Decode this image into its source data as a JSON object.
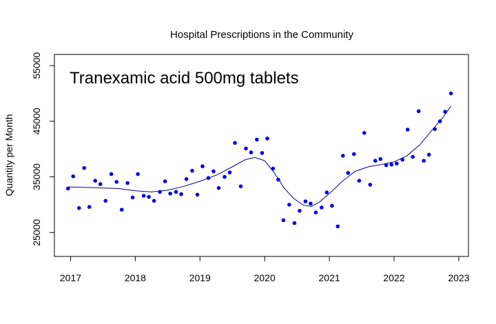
{
  "chart_data": {
    "type": "scatter",
    "title": "Hospital Prescriptions in the Community",
    "annotation": "Tranexamic acid 500mg tablets",
    "xlabel": "",
    "ylabel": "Quantity per Month",
    "xlim": [
      2016.75,
      2023.15
    ],
    "ylim": [
      20700,
      57000
    ],
    "x_ticks": [
      2017,
      2018,
      2019,
      2020,
      2021,
      2022,
      2023
    ],
    "x_tick_labels": [
      "2017",
      "2018",
      "2019",
      "2020",
      "2021",
      "2022",
      "2023"
    ],
    "y_ticks": [
      25000,
      35000,
      45000,
      55000
    ],
    "y_tick_labels": [
      "25000",
      "35000",
      "45000",
      "55000"
    ],
    "grid": false,
    "colors": {
      "points": "#0000ee",
      "trend": "#00008b",
      "frame": "#000000"
    },
    "series": [
      {
        "kind": "points",
        "x": [
          2016.96,
          2017.04,
          2017.13,
          2017.21,
          2017.29,
          2017.38,
          2017.46,
          2017.54,
          2017.63,
          2017.71,
          2017.79,
          2017.88,
          2017.96,
          2018.04,
          2018.13,
          2018.21,
          2018.29,
          2018.38,
          2018.46,
          2018.54,
          2018.63,
          2018.71,
          2018.79,
          2018.88,
          2018.96,
          2019.04,
          2019.13,
          2019.21,
          2019.29,
          2019.38,
          2019.46,
          2019.54,
          2019.63,
          2019.71,
          2019.79,
          2019.88,
          2019.96,
          2020.04,
          2020.13,
          2020.21,
          2020.29,
          2020.38,
          2020.46,
          2020.54,
          2020.63,
          2020.71,
          2020.79,
          2020.88,
          2020.96,
          2021.04,
          2021.13,
          2021.21,
          2021.29,
          2021.38,
          2021.46,
          2021.54,
          2021.63,
          2021.71,
          2021.79,
          2021.88,
          2021.96,
          2022.04,
          2022.13,
          2022.21,
          2022.29,
          2022.38,
          2022.46,
          2022.54,
          2022.63,
          2022.71,
          2022.79,
          2022.88
        ],
        "y": [
          32900,
          35100,
          29400,
          36600,
          29600,
          34300,
          33700,
          30700,
          35500,
          34100,
          29100,
          33900,
          31300,
          35500,
          31600,
          31400,
          30700,
          32300,
          34200,
          32000,
          32300,
          31900,
          34600,
          36100,
          31800,
          36900,
          34800,
          36000,
          33000,
          35000,
          35800,
          41100,
          33300,
          40100,
          39400,
          41700,
          39300,
          41900,
          36500,
          34500,
          27200,
          30000,
          26700,
          28900,
          30600,
          30200,
          28600,
          29500,
          32200,
          29800,
          26100,
          38800,
          35700,
          39100,
          34300,
          42900,
          33600,
          37900,
          38200,
          37100,
          37200,
          37400,
          38100,
          43500,
          38600,
          46800,
          37900,
          39000,
          43600,
          45000,
          46700,
          50000
        ]
      },
      {
        "kind": "trend",
        "x": [
          2016.96,
          2017.25,
          2017.5,
          2017.75,
          2018.0,
          2018.25,
          2018.5,
          2018.75,
          2019.0,
          2019.25,
          2019.5,
          2019.7,
          2019.85,
          2020.0,
          2020.15,
          2020.3,
          2020.45,
          2020.6,
          2020.72,
          2020.85,
          2021.0,
          2021.2,
          2021.4,
          2021.6,
          2021.8,
          2022.0,
          2022.2,
          2022.4,
          2022.6,
          2022.75,
          2022.88
        ],
        "y": [
          33200,
          33100,
          33000,
          32900,
          32500,
          32300,
          32600,
          33300,
          34200,
          35300,
          36800,
          38100,
          38500,
          37900,
          35700,
          33000,
          31100,
          29900,
          29700,
          30500,
          32000,
          34200,
          36000,
          36800,
          37200,
          37700,
          38800,
          40800,
          43600,
          45600,
          47700
        ]
      }
    ]
  }
}
